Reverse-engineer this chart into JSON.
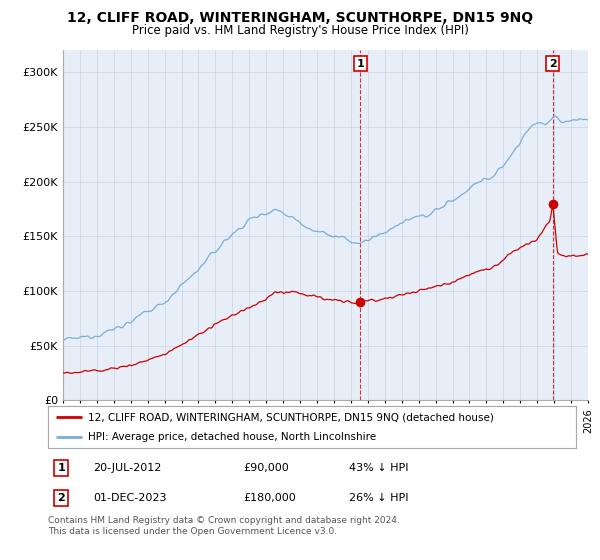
{
  "title": "12, CLIFF ROAD, WINTERINGHAM, SCUNTHORPE, DN15 9NQ",
  "subtitle": "Price paid vs. HM Land Registry's House Price Index (HPI)",
  "ylim": [
    0,
    320000
  ],
  "yticks": [
    0,
    50000,
    100000,
    150000,
    200000,
    250000,
    300000
  ],
  "ytick_labels": [
    "£0",
    "£50K",
    "£100K",
    "£150K",
    "£200K",
    "£250K",
    "£300K"
  ],
  "hpi_color": "#7aadd4",
  "price_color": "#cc0000",
  "vline_color": "#cc0000",
  "grid_color": "#c8d4e8",
  "bg_color": "#e8eef8",
  "legend_label_price": "12, CLIFF ROAD, WINTERINGHAM, SCUNTHORPE, DN15 9NQ (detached house)",
  "legend_label_hpi": "HPI: Average price, detached house, North Lincolnshire",
  "annotation1_label": "1",
  "annotation1_date": "20-JUL-2012",
  "annotation1_price": "£90,000",
  "annotation1_pct": "43% ↓ HPI",
  "annotation1_year": 2012.55,
  "annotation1_value": 90000,
  "annotation2_label": "2",
  "annotation2_date": "01-DEC-2023",
  "annotation2_price": "£180,000",
  "annotation2_pct": "26% ↓ HPI",
  "annotation2_year": 2023.92,
  "annotation2_value": 180000,
  "footer": "Contains HM Land Registry data © Crown copyright and database right 2024.\nThis data is licensed under the Open Government Licence v3.0.",
  "xmin": 1995,
  "xmax": 2026
}
